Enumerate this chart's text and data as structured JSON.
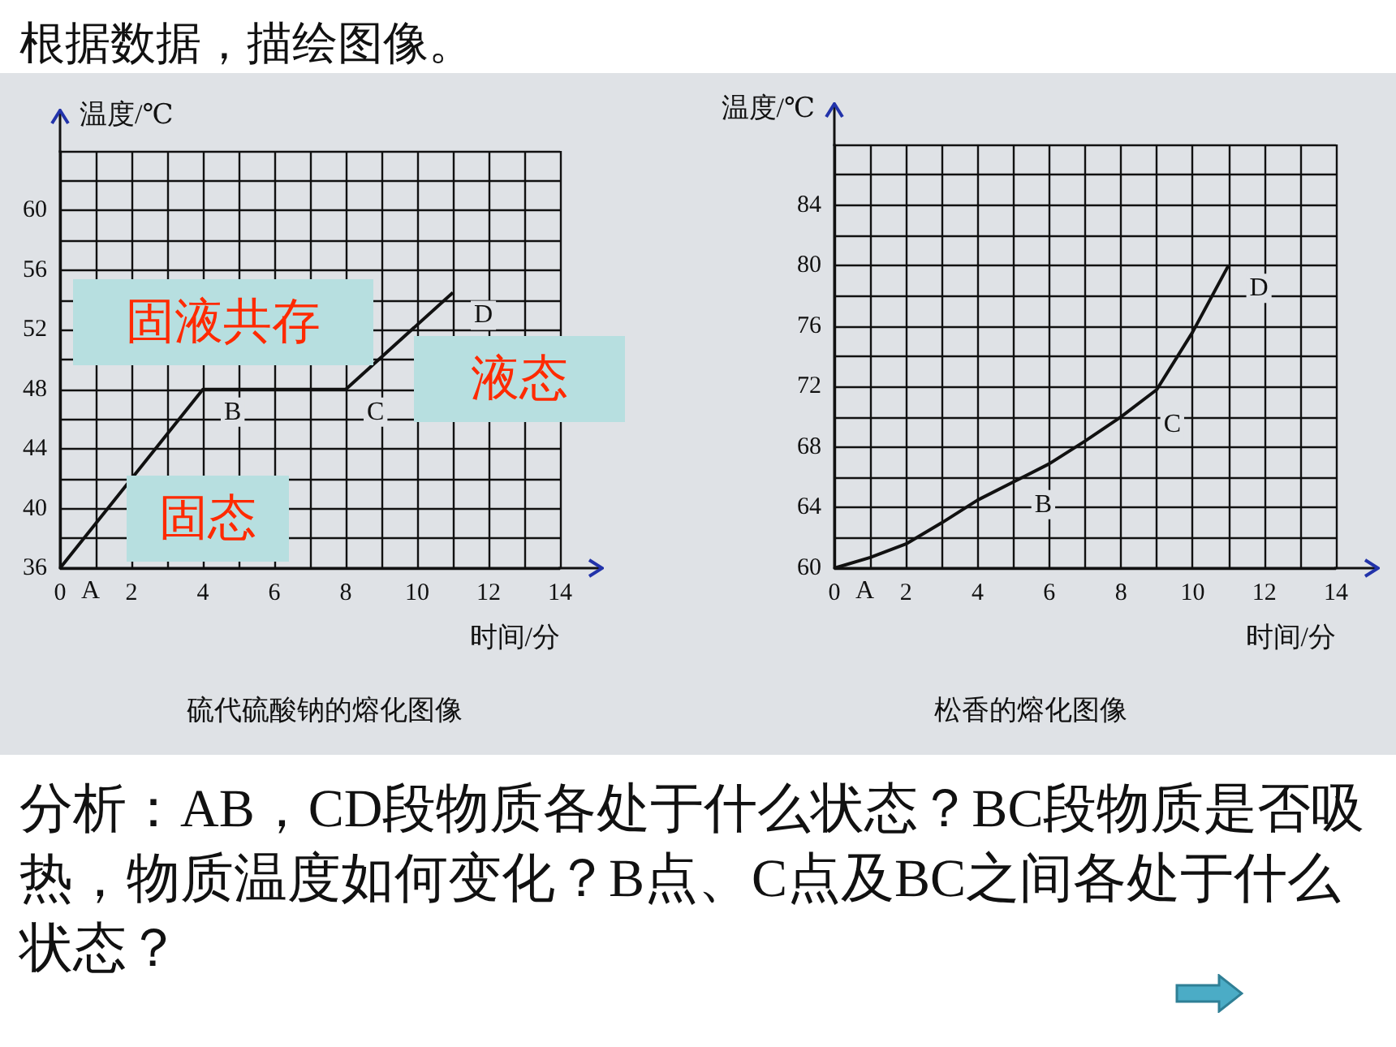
{
  "chart_data": [
    {
      "type": "other",
      "title": "根据数据，描绘图像。"
    },
    {
      "type": "line",
      "title": "硫代硫酸钠的熔化图像",
      "xlabel": "时间/分",
      "ylabel": "温度/℃",
      "x": [
        0,
        4,
        8,
        11
      ],
      "values": [
        36,
        48,
        48,
        54.5
      ],
      "color": "#111111",
      "marker": "none",
      "grid": true,
      "xlim": [
        0,
        14
      ],
      "ylim": [
        36,
        64
      ],
      "xticks": [
        0,
        {
          "value": 1,
          "label": null
        },
        2,
        {
          "value": 3,
          "label": null
        },
        4,
        {
          "value": 5,
          "label": null
        },
        6,
        {
          "value": 7,
          "label": null
        },
        8,
        {
          "value": 9,
          "label": null
        },
        10,
        {
          "value": 11,
          "label": null
        },
        12,
        {
          "value": 13,
          "label": null
        },
        14
      ],
      "yticks": [
        36,
        {
          "value": 38,
          "label": null
        },
        40,
        {
          "value": 42,
          "label": null
        },
        44,
        {
          "value": 46,
          "label": null
        },
        48,
        {
          "value": 50,
          "label": null
        },
        52,
        {
          "value": 54,
          "label": null
        },
        56,
        {
          "value": 58,
          "label": null
        },
        60,
        {
          "value": 62,
          "label": null
        },
        {
          "value": 64,
          "label": null
        }
      ],
      "annotations": [
        {
          "text": "A",
          "x": 0,
          "y": 36
        },
        {
          "text": "B",
          "x": 4,
          "y": 48
        },
        {
          "text": "C",
          "x": 8,
          "y": 48
        },
        {
          "text": "D",
          "x": 11,
          "y": 54.5
        },
        "固液共存",
        "液态",
        "固态"
      ]
    },
    {
      "type": "line",
      "title": "松香的熔化图像",
      "xlabel": "时间/分",
      "ylabel": "温度/℃",
      "x": [
        0,
        1,
        2,
        3,
        4,
        5,
        6,
        7,
        8,
        9,
        10,
        11
      ],
      "values": [
        60,
        60.7,
        61.6,
        63,
        64.5,
        65.7,
        66.9,
        68.4,
        70,
        71.8,
        75.6,
        80
      ],
      "color": "#111111",
      "marker": "none",
      "grid": true,
      "xlim": [
        0,
        14
      ],
      "ylim": [
        60,
        88
      ],
      "xticks": [
        0,
        {
          "value": 1,
          "label": null
        },
        2,
        {
          "value": 3,
          "label": null
        },
        4,
        {
          "value": 5,
          "label": null
        },
        6,
        {
          "value": 7,
          "label": null
        },
        8,
        {
          "value": 9,
          "label": null
        },
        10,
        {
          "value": 11,
          "label": null
        },
        12,
        {
          "value": 13,
          "label": null
        },
        14
      ],
      "yticks": [
        60,
        {
          "value": 62,
          "label": null
        },
        64,
        {
          "value": 66,
          "label": null
        },
        68,
        {
          "value": 70,
          "label": null
        },
        72,
        {
          "value": 74,
          "label": null
        },
        76,
        {
          "value": 78,
          "label": null
        },
        80,
        {
          "value": 82,
          "label": null
        },
        84,
        {
          "value": 86,
          "label": null
        },
        {
          "value": 88,
          "label": null
        }
      ],
      "annotations": [
        {
          "text": "A",
          "x": 0,
          "y": 60
        },
        {
          "text": "B",
          "x": 5,
          "y": 65.7
        },
        {
          "text": "C",
          "x": 8.6,
          "y": 71
        },
        {
          "text": "D",
          "x": 11,
          "y": 80
        }
      ]
    },
    {
      "type": "other",
      "annotations": [
        "分析：AB，CD段物质各处于什么状态？BC段物质是否吸热，物质温度如何变化？B点、C点及BC之间各处于什么状态？"
      ]
    }
  ]
}
